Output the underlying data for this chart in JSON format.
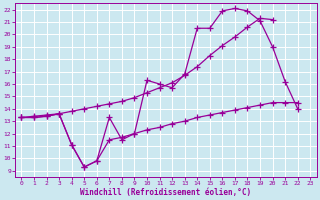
{
  "xlabel": "Windchill (Refroidissement éolien,°C)",
  "bg_color": "#cce8f0",
  "grid_color": "#ffffff",
  "line_color": "#990099",
  "line1_x": [
    0,
    1,
    2,
    3,
    4,
    5,
    6,
    7,
    8,
    9,
    10,
    11,
    12,
    13,
    14,
    15,
    16,
    17,
    18,
    19,
    20,
    21,
    22
  ],
  "line1_y": [
    13.3,
    13.3,
    13.4,
    13.6,
    11.1,
    9.3,
    9.8,
    13.3,
    11.5,
    12.0,
    16.3,
    16.0,
    15.7,
    16.8,
    20.5,
    20.5,
    21.9,
    22.1,
    21.9,
    21.1,
    19.0,
    16.2,
    14.0
  ],
  "line2_x": [
    0,
    1,
    2,
    3,
    4,
    5,
    6,
    7,
    8,
    9,
    10,
    11,
    12,
    13,
    14,
    15,
    16,
    17,
    18,
    19,
    20
  ],
  "line2_y": [
    13.3,
    13.4,
    13.5,
    13.6,
    13.8,
    14.0,
    14.2,
    14.4,
    14.6,
    14.9,
    15.3,
    15.7,
    16.1,
    16.7,
    17.4,
    18.3,
    19.1,
    19.8,
    20.6,
    21.3,
    21.2
  ],
  "line3_x": [
    0,
    1,
    2,
    3,
    4,
    5,
    6,
    7,
    8,
    9,
    10,
    11,
    12,
    13,
    14,
    15,
    16,
    17,
    18,
    19,
    20,
    21,
    22
  ],
  "line3_y": [
    13.3,
    13.3,
    13.4,
    13.6,
    11.1,
    9.3,
    9.8,
    11.5,
    11.7,
    12.0,
    12.3,
    12.5,
    12.8,
    13.0,
    13.3,
    13.5,
    13.7,
    13.9,
    14.1,
    14.3,
    14.5,
    14.5,
    14.5
  ],
  "xlim_min": -0.5,
  "xlim_max": 23.5,
  "ylim_min": 8.5,
  "ylim_max": 22.5,
  "yticks": [
    9,
    10,
    11,
    12,
    13,
    14,
    15,
    16,
    17,
    18,
    19,
    20,
    21,
    22
  ],
  "xticks": [
    0,
    1,
    2,
    3,
    4,
    5,
    6,
    7,
    8,
    9,
    10,
    11,
    12,
    13,
    14,
    15,
    16,
    17,
    18,
    19,
    20,
    21,
    22,
    23
  ]
}
